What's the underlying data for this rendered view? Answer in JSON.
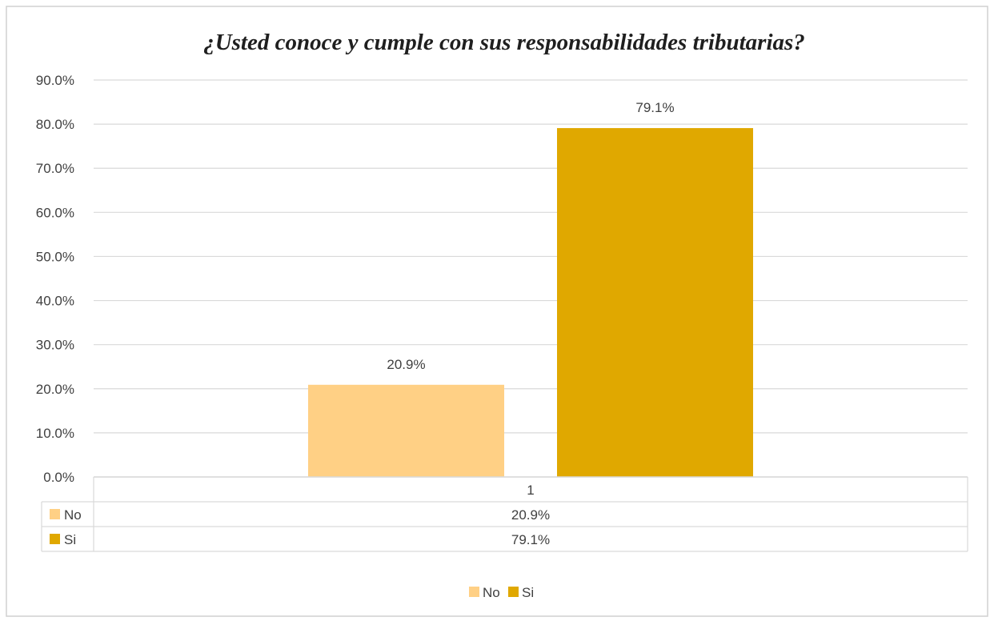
{
  "chart_data": {
    "type": "bar",
    "title": "¿Usted  conoce y cumple con sus responsabilidades tributarias?",
    "categories": [
      "1"
    ],
    "series": [
      {
        "name": "No",
        "values": [
          0.209
        ],
        "label": "20.9%",
        "color": "#FFD085"
      },
      {
        "name": "Si",
        "values": [
          0.791
        ],
        "label": "79.1%",
        "color": "#E0A800"
      }
    ],
    "ylim": [
      0,
      0.9
    ],
    "yticks": [
      "0.0%",
      "10.0%",
      "20.0%",
      "30.0%",
      "40.0%",
      "50.0%",
      "60.0%",
      "70.0%",
      "80.0%",
      "90.0%"
    ],
    "grid": true,
    "data_table": true,
    "legend_position": "bottom"
  },
  "colors": {
    "grid": "#D9D9D9",
    "border": "#D0D0D0",
    "text": "#404040"
  }
}
